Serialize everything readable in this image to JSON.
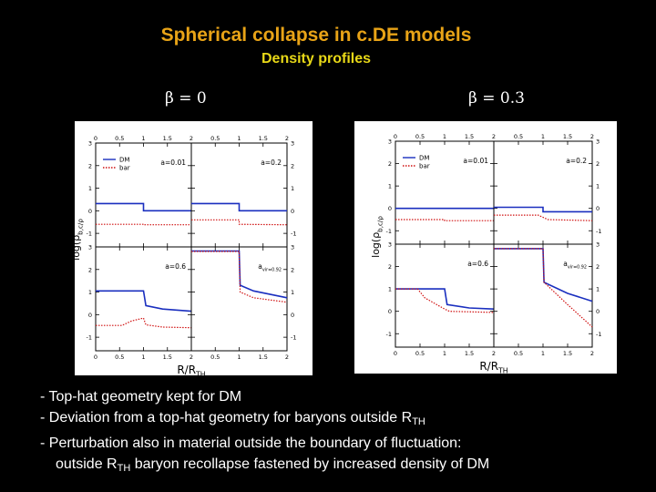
{
  "title": "Spherical collapse in c.DE models",
  "subtitle": "Density profiles",
  "beta_left": "β = 0",
  "beta_right": "β = 0.3",
  "notes": {
    "line1": "- Top-hat geometry kept for DM",
    "line2_a": "- Deviation from a top-hat geometry for baryons outside R",
    "line2_sub": "TH",
    "line3": "- Perturbation also in material outside the boundary of fluctuation:",
    "line4_a": "outside R",
    "line4_sub": "TH",
    "line4_b": " baryon recollapse fastened by increased density of DM"
  },
  "colors": {
    "title": "#e8a317",
    "subtitle": "#e8d817",
    "dm": "#1a2fbf",
    "bar": "#d01010"
  },
  "chart_data": [
    {
      "type": "line",
      "beta": "β = 0",
      "xlabel": "R/R_TH",
      "ylabel": "log(ρ_b,c/ρ_m)",
      "xlim": [
        0,
        2
      ],
      "ylim": [
        -1.6,
        3
      ],
      "xticks": [
        "0",
        "0.5",
        "1",
        "1.5",
        "2"
      ],
      "yticks": [
        "-1",
        "0",
        "1",
        "2",
        "3"
      ],
      "legend": [
        "DM",
        "bar"
      ],
      "panels": [
        {
          "label": "a=0.01",
          "series": [
            {
              "name": "DM",
              "points": [
                [
                  0,
                  0.32
                ],
                [
                  1,
                  0.32
                ],
                [
                  1,
                  0.0
                ],
                [
                  2,
                  0.0
                ]
              ]
            },
            {
              "name": "bar",
              "points": [
                [
                  0,
                  -0.6
                ],
                [
                  1,
                  -0.6
                ],
                [
                  1,
                  -0.62
                ],
                [
                  2,
                  -0.62
                ]
              ]
            }
          ]
        },
        {
          "label": "a=0.2",
          "series": [
            {
              "name": "DM",
              "points": [
                [
                  0,
                  0.32
                ],
                [
                  1,
                  0.32
                ],
                [
                  1,
                  0.0
                ],
                [
                  2,
                  0.0
                ]
              ]
            },
            {
              "name": "bar",
              "points": [
                [
                  0,
                  -0.4
                ],
                [
                  1,
                  -0.4
                ],
                [
                  1,
                  -0.6
                ],
                [
                  2,
                  -0.62
                ]
              ]
            }
          ]
        },
        {
          "label": "a=0.6",
          "series": [
            {
              "name": "DM",
              "points": [
                [
                  0,
                  1.05
                ],
                [
                  1,
                  1.05
                ],
                [
                  1.05,
                  0.4
                ],
                [
                  1.4,
                  0.25
                ],
                [
                  2,
                  0.15
                ]
              ]
            },
            {
              "name": "bar",
              "points": [
                [
                  0,
                  -0.48
                ],
                [
                  0.55,
                  -0.48
                ],
                [
                  0.75,
                  -0.28
                ],
                [
                  1,
                  -0.15
                ],
                [
                  1.05,
                  -0.45
                ],
                [
                  1.4,
                  -0.55
                ],
                [
                  2,
                  -0.58
                ]
              ]
            }
          ]
        },
        {
          "label": "a_vir=0.92",
          "series": [
            {
              "name": "DM",
              "points": [
                [
                  0,
                  2.82
                ],
                [
                  1,
                  2.82
                ],
                [
                  1.02,
                  1.3
                ],
                [
                  1.3,
                  1.05
                ],
                [
                  2,
                  0.75
                ]
              ]
            },
            {
              "name": "bar",
              "points": [
                [
                  0,
                  2.8
                ],
                [
                  1,
                  2.8
                ],
                [
                  1.02,
                  1.0
                ],
                [
                  1.3,
                  0.75
                ],
                [
                  2,
                  0.55
                ]
              ]
            }
          ]
        }
      ]
    },
    {
      "type": "line",
      "beta": "β = 0.3",
      "xlabel": "R/R_TH",
      "ylabel": "log(ρ_b,c/ρ_m)",
      "xlim": [
        0,
        2
      ],
      "ylim": [
        -1.6,
        3
      ],
      "xticks": [
        "0",
        "0.5",
        "1",
        "1.5",
        "2"
      ],
      "yticks": [
        "-1",
        "0",
        "1",
        "2",
        "3"
      ],
      "legend": [
        "DM",
        "bar"
      ],
      "panels": [
        {
          "label": "a=0.01",
          "series": [
            {
              "name": "DM",
              "points": [
                [
                  0,
                  0.0
                ],
                [
                  1,
                  0.0
                ],
                [
                  1,
                  0.0
                ],
                [
                  2,
                  0.0
                ]
              ]
            },
            {
              "name": "bar",
              "points": [
                [
                  0,
                  -0.5
                ],
                [
                  1,
                  -0.5
                ],
                [
                  1,
                  -0.55
                ],
                [
                  2,
                  -0.55
                ]
              ]
            }
          ]
        },
        {
          "label": "a=0.2",
          "series": [
            {
              "name": "DM",
              "points": [
                [
                  0,
                  0.05
                ],
                [
                  1,
                  0.05
                ],
                [
                  1,
                  -0.15
                ],
                [
                  2,
                  -0.15
                ]
              ]
            },
            {
              "name": "bar",
              "points": [
                [
                  0,
                  -0.3
                ],
                [
                  0.9,
                  -0.3
                ],
                [
                  1.1,
                  -0.5
                ],
                [
                  2,
                  -0.55
                ]
              ]
            }
          ]
        },
        {
          "label": "a=0.6",
          "series": [
            {
              "name": "DM",
              "points": [
                [
                  0,
                  1.0
                ],
                [
                  1,
                  1.0
                ],
                [
                  1.05,
                  0.3
                ],
                [
                  1.5,
                  0.15
                ],
                [
                  2,
                  0.1
                ]
              ]
            },
            {
              "name": "bar",
              "points": [
                [
                  0,
                  1.0
                ],
                [
                  0.45,
                  1.0
                ],
                [
                  0.6,
                  0.6
                ],
                [
                  1,
                  0.1
                ],
                [
                  1.1,
                  0.0
                ],
                [
                  2,
                  -0.05
                ]
              ]
            }
          ]
        },
        {
          "label": "a_vir=0.92",
          "series": [
            {
              "name": "DM",
              "points": [
                [
                  0,
                  2.8
                ],
                [
                  1,
                  2.8
                ],
                [
                  1.02,
                  1.3
                ],
                [
                  1.5,
                  0.8
                ],
                [
                  2,
                  0.45
                ]
              ]
            },
            {
              "name": "bar",
              "points": [
                [
                  0,
                  2.8
                ],
                [
                  1,
                  2.8
                ],
                [
                  1.02,
                  1.3
                ],
                [
                  1.5,
                  0.3
                ],
                [
                  2,
                  -0.7
                ]
              ]
            }
          ]
        }
      ]
    }
  ]
}
